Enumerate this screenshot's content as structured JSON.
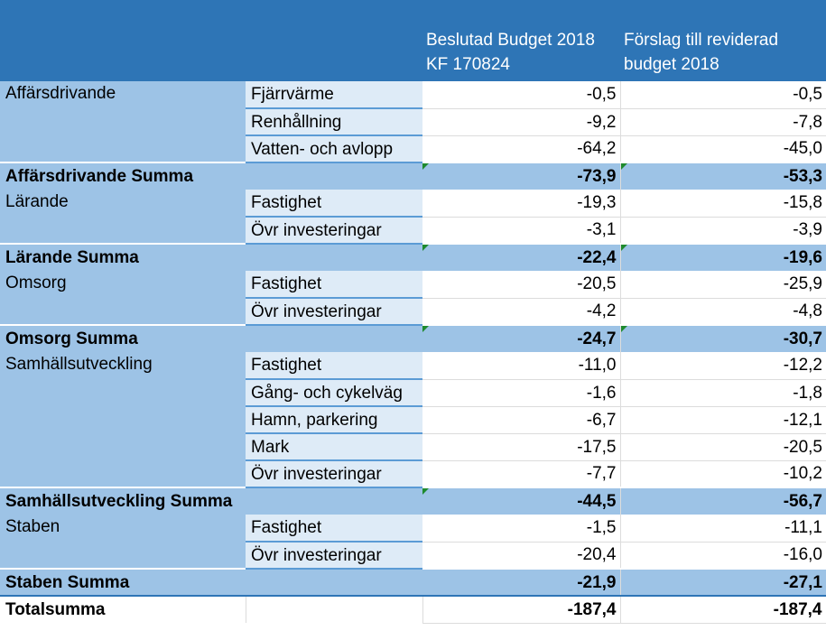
{
  "header": {
    "col3": "Beslutad Budget 2018 KF 170824",
    "col4": "Förslag till reviderad budget 2018"
  },
  "groups": [
    {
      "dept": "Affärsdrivande",
      "items": [
        {
          "label": "Fjärrvärme",
          "beslutad": "-0,5",
          "forslag": "-0,5"
        },
        {
          "label": "Renhållning",
          "beslutad": "-9,2",
          "forslag": "-7,8"
        },
        {
          "label": "Vatten- och avlopp",
          "beslutad": "-64,2",
          "forslag": "-45,0"
        }
      ],
      "sum": {
        "label": "Affärsdrivande Summa",
        "beslutad": "-73,9",
        "forslag": "-53,3"
      }
    },
    {
      "dept": "Lärande",
      "items": [
        {
          "label": "Fastighet",
          "beslutad": "-19,3",
          "forslag": "-15,8"
        },
        {
          "label": "Övr investeringar",
          "beslutad": "-3,1",
          "forslag": "-3,9"
        }
      ],
      "sum": {
        "label": "Lärande Summa",
        "beslutad": "-22,4",
        "forslag": "-19,6"
      }
    },
    {
      "dept": "Omsorg",
      "items": [
        {
          "label": "Fastighet",
          "beslutad": "-20,5",
          "forslag": "-25,9"
        },
        {
          "label": "Övr investeringar",
          "beslutad": "-4,2",
          "forslag": "-4,8"
        }
      ],
      "sum": {
        "label": "Omsorg Summa",
        "beslutad": "-24,7",
        "forslag": "-30,7"
      }
    },
    {
      "dept": "Samhällsutveckling",
      "items": [
        {
          "label": "Fastighet",
          "beslutad": "-11,0",
          "forslag": "-12,2"
        },
        {
          "label": "Gång- och cykelväg",
          "beslutad": "-1,6",
          "forslag": "-1,8"
        },
        {
          "label": "Hamn, parkering",
          "beslutad": "-6,7",
          "forslag": "-12,1"
        },
        {
          "label": "Mark",
          "beslutad": "-17,5",
          "forslag": "-20,5"
        },
        {
          "label": "Övr investeringar",
          "beslutad": "-7,7",
          "forslag": "-10,2"
        }
      ],
      "sum": {
        "label": "Samhällsutveckling Summa",
        "beslutad": "-44,5",
        "forslag": "-56,7"
      }
    },
    {
      "dept": "Staben",
      "items": [
        {
          "label": "Fastighet",
          "beslutad": "-1,5",
          "forslag": "-11,1"
        },
        {
          "label": "Övr investeringar",
          "beslutad": "-20,4",
          "forslag": "-16,0"
        }
      ],
      "sum": {
        "label": "Staben Summa",
        "beslutad": "-21,9",
        "forslag": "-27,1"
      }
    }
  ],
  "total": {
    "label": "Totalsumma",
    "beslutad": "-187,4",
    "forslag": "-187,4"
  }
}
